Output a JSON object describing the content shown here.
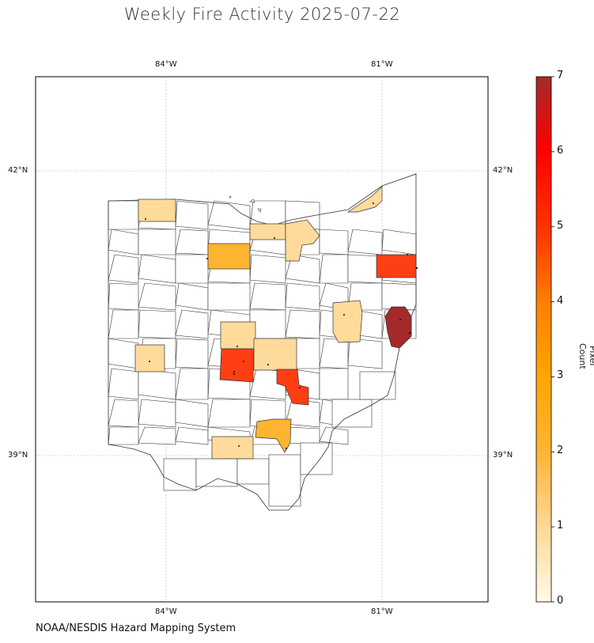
{
  "title": "Weekly Fire Activity 2025-07-22",
  "source": "NOAA/NESDIS Hazard Mapping System",
  "lon_ticks": [
    "84°W",
    "81°W"
  ],
  "lat_ticks": [
    "42°N",
    "39°N"
  ],
  "colorbar": {
    "label": "Pixel Count",
    "ticks": [
      "0",
      "1",
      "2",
      "3",
      "4",
      "5",
      "6",
      "7"
    ],
    "min": 0,
    "max": 7,
    "colors": [
      "#fffbe6",
      "#fed898",
      "#fdb333",
      "#ffa500",
      "#ff7f00",
      "#ff3300",
      "#ff0000",
      "#a52a2a"
    ]
  },
  "colors": {
    "county_fill": "#ffffff",
    "county_stroke": "#333333",
    "count_1": "#fedb9b",
    "count_2": "#fdb431",
    "count_4": "#fe3f14",
    "count_7": "#a52a2a"
  },
  "map_data": {
    "region": "Ohio counties",
    "extent": {
      "lon": [
        -85.8,
        -79.5
      ],
      "lat": [
        37.0,
        43.3
      ]
    },
    "fire_counties": [
      {
        "value": 1
      },
      {
        "value": 1
      },
      {
        "value": 1
      },
      {
        "value": 1
      },
      {
        "value": 1
      },
      {
        "value": 1
      },
      {
        "value": 1
      },
      {
        "value": 1
      },
      {
        "value": 2
      },
      {
        "value": 2
      },
      {
        "value": 4
      },
      {
        "value": 4
      },
      {
        "value": 4
      },
      {
        "value": 7
      }
    ]
  }
}
